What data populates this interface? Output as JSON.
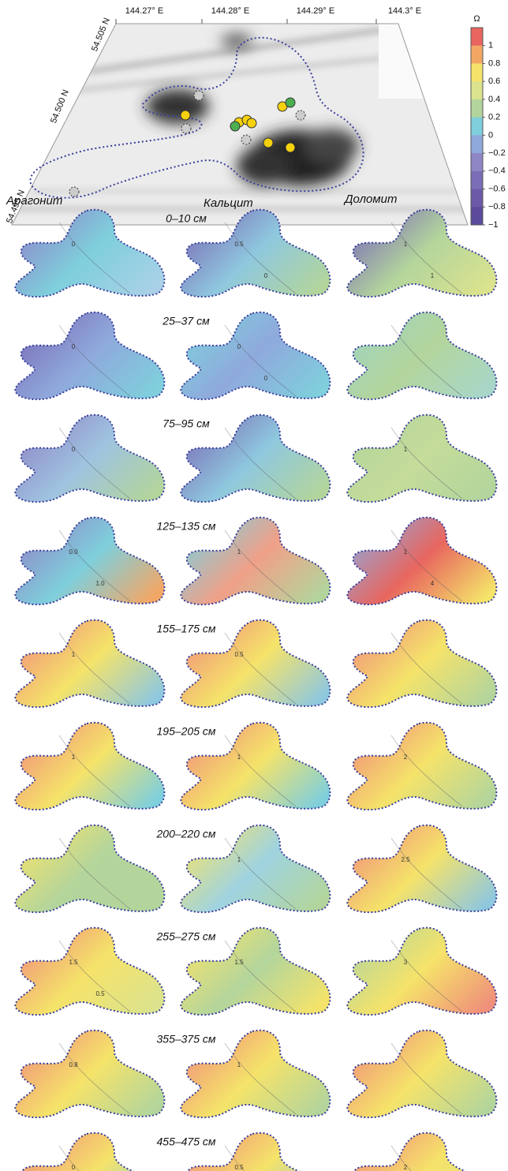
{
  "map": {
    "lon_labels": [
      "144.27° E",
      "144.28° E",
      "144.29° E",
      "144.3° E"
    ],
    "lat_labels": [
      "54.505 N",
      "54.500 N",
      "54.495 N"
    ]
  },
  "colorbar": {
    "symbol": "Ω",
    "range": [
      -1,
      1.2
    ],
    "ticks": [
      1,
      0.8,
      0.6,
      0.4,
      0.2,
      0,
      {
        "value": -0.2,
        "label": "−0.2"
      },
      {
        "value": -0.4,
        "label": "−0.4"
      },
      {
        "value": -0.6,
        "label": "−0.6"
      },
      {
        "value": -0.8,
        "label": "−0.8"
      },
      {
        "value": -1,
        "label": "−1"
      }
    ],
    "band_colors": [
      "#e8665f",
      "#f3a765",
      "#f5e36a",
      "#dbe38e",
      "#b3d59c",
      "#7fcfdc",
      "#8fa9dc",
      "#8f86c6",
      "#7b6db7",
      "#6c5aa9",
      "#5b4b9a"
    ]
  },
  "columns": [
    "Арагонит",
    "Кальцит",
    "Доломит"
  ],
  "rows": [
    {
      "depth": "0–10 см",
      "contour_labels": [
        [
          "0"
        ],
        [
          "0.5",
          "0"
        ],
        [
          "1",
          "1"
        ]
      ]
    },
    {
      "depth": "25–37 см",
      "contour_labels": [
        [
          "0"
        ],
        [
          "0",
          "0"
        ],
        []
      ]
    },
    {
      "depth": "75–95 см",
      "contour_labels": [
        [
          "0"
        ],
        [],
        [
          "1"
        ]
      ]
    },
    {
      "depth": "125–135 см",
      "contour_labels": [
        [
          "0.0",
          "1.0"
        ],
        [
          "1"
        ],
        [
          "1",
          "4"
        ]
      ]
    },
    {
      "depth": "155–175 см",
      "contour_labels": [
        [
          "1"
        ],
        [
          "0.5"
        ],
        []
      ]
    },
    {
      "depth": "195–205 см",
      "contour_labels": [
        [
          "1"
        ],
        [
          "1"
        ],
        [
          "2"
        ]
      ]
    },
    {
      "depth": "200–220 см",
      "contour_labels": [
        [],
        [
          "1"
        ],
        [
          "2.5"
        ]
      ]
    },
    {
      "depth": "255–275 см",
      "contour_labels": [
        [
          "1.5",
          "0.5"
        ],
        [
          "1.5"
        ],
        [
          "3"
        ]
      ]
    },
    {
      "depth": "355–375 см",
      "contour_labels": [
        [
          "0.8"
        ],
        [
          "1"
        ],
        []
      ]
    },
    {
      "depth": "455–475 см",
      "contour_labels": [
        [
          "0"
        ],
        [
          "0.5"
        ],
        [
          "2"
        ]
      ]
    }
  ]
}
